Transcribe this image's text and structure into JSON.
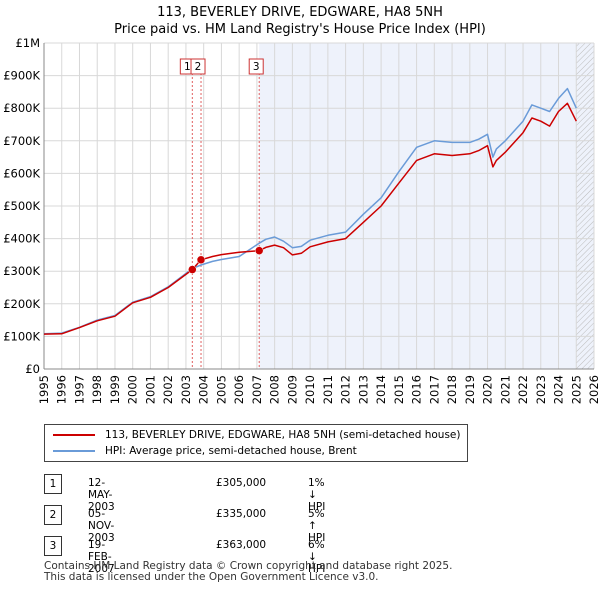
{
  "title_line1": "113, BEVERLEY DRIVE, EDGWARE, HA8 5NH",
  "title_line2": "Price paid vs. HM Land Registry's House Price Index (HPI)",
  "colors": {
    "property": "#cc0000",
    "hpi": "#6a9bd8",
    "shade": "#eef2fb",
    "grid": "#d8d8d8",
    "marker_line": "#e06060"
  },
  "legend": {
    "property_label": "113, BEVERLEY DRIVE, EDGWARE, HA8 5NH (semi-detached house)",
    "hpi_label": "HPI: Average price, semi-detached house, Brent"
  },
  "transactions": [
    {
      "num": "1",
      "date": "12-MAY-2003",
      "price": "£305,000",
      "hpi": "1% ↓ HPI"
    },
    {
      "num": "2",
      "date": "05-NOV-2003",
      "price": "£335,000",
      "hpi": "5% ↑ HPI"
    },
    {
      "num": "3",
      "date": "19-FEB-2007",
      "price": "£363,000",
      "hpi": "6% ↓ HPI"
    }
  ],
  "footer_line1": "Contains HM Land Registry data © Crown copyright and database right 2025.",
  "footer_line2": "This data is licensed under the Open Government Licence v3.0.",
  "chart_data": {
    "type": "line",
    "title": "Price paid vs. HM Land Registry's House Price Index (HPI)",
    "xlim": [
      1995,
      2026
    ],
    "ylim": [
      0,
      1000000
    ],
    "x_ticks": [
      1995,
      1996,
      1997,
      1998,
      1999,
      2000,
      2001,
      2002,
      2003,
      2004,
      2005,
      2006,
      2007,
      2008,
      2009,
      2010,
      2011,
      2012,
      2013,
      2014,
      2015,
      2016,
      2017,
      2018,
      2019,
      2020,
      2021,
      2022,
      2023,
      2024,
      2025,
      2026
    ],
    "y_ticks": [
      {
        "value": 0,
        "label": "£0"
      },
      {
        "value": 100000,
        "label": "£100K"
      },
      {
        "value": 200000,
        "label": "£200K"
      },
      {
        "value": 300000,
        "label": "£300K"
      },
      {
        "value": 400000,
        "label": "£400K"
      },
      {
        "value": 500000,
        "label": "£500K"
      },
      {
        "value": 600000,
        "label": "£600K"
      },
      {
        "value": 700000,
        "label": "£700K"
      },
      {
        "value": 800000,
        "label": "£800K"
      },
      {
        "value": 900000,
        "label": "£900K"
      },
      {
        "value": 1000000,
        "label": "£1M"
      }
    ],
    "shaded_from": 2007.13,
    "hatched_from": 2025.0,
    "series": [
      {
        "name": "113, BEVERLEY DRIVE, EDGWARE, HA8 5NH (semi-detached house)",
        "x": [
          1995,
          1996,
          1997,
          1998,
          1999,
          2000,
          2001,
          2002,
          2003.36,
          2003.85,
          2004.5,
          2005,
          2006,
          2007.13,
          2007.5,
          2008,
          2008.5,
          2009,
          2009.5,
          2010,
          2011,
          2012,
          2013,
          2014,
          2015,
          2016,
          2017,
          2018,
          2019,
          2019.5,
          2020,
          2020.3,
          2020.5,
          2021,
          2022,
          2022.5,
          2023,
          2023.5,
          2024,
          2024.5,
          2025.0
        ],
        "values": [
          107000,
          108000,
          127000,
          148000,
          162000,
          203000,
          220000,
          250000,
          305000,
          335000,
          345000,
          351000,
          358000,
          363000,
          373000,
          380000,
          372000,
          350000,
          355000,
          375000,
          390000,
          400000,
          450000,
          500000,
          570000,
          640000,
          660000,
          655000,
          660000,
          670000,
          685000,
          620000,
          640000,
          665000,
          725000,
          770000,
          760000,
          745000,
          790000,
          815000,
          760000
        ]
      },
      {
        "name": "HPI: Average price, semi-detached house, Brent",
        "x": [
          1995,
          1996,
          1997,
          1998,
          1999,
          2000,
          2001,
          2002,
          2003.36,
          2003.85,
          2004.5,
          2005,
          2006,
          2007.13,
          2007.5,
          2008,
          2008.5,
          2009,
          2009.5,
          2010,
          2011,
          2012,
          2013,
          2014,
          2015,
          2016,
          2017,
          2018,
          2019,
          2019.5,
          2020,
          2020.3,
          2020.5,
          2021,
          2022,
          2022.5,
          2023,
          2023.5,
          2024,
          2024.5,
          2025.0
        ],
        "values": [
          108000,
          110000,
          128000,
          150000,
          164000,
          205000,
          222000,
          252000,
          308000,
          319000,
          330000,
          336000,
          345000,
          386000,
          398000,
          405000,
          392000,
          372000,
          376000,
          395000,
          410000,
          420000,
          475000,
          525000,
          605000,
          680000,
          700000,
          695000,
          695000,
          705000,
          720000,
          650000,
          675000,
          700000,
          760000,
          810000,
          800000,
          790000,
          830000,
          860000,
          800000
        ]
      }
    ],
    "sales": [
      {
        "num": "1",
        "x": 2003.36,
        "value": 305000
      },
      {
        "num": "2",
        "x": 2003.85,
        "value": 335000
      },
      {
        "num": "3",
        "x": 2007.13,
        "value": 363000
      }
    ]
  }
}
